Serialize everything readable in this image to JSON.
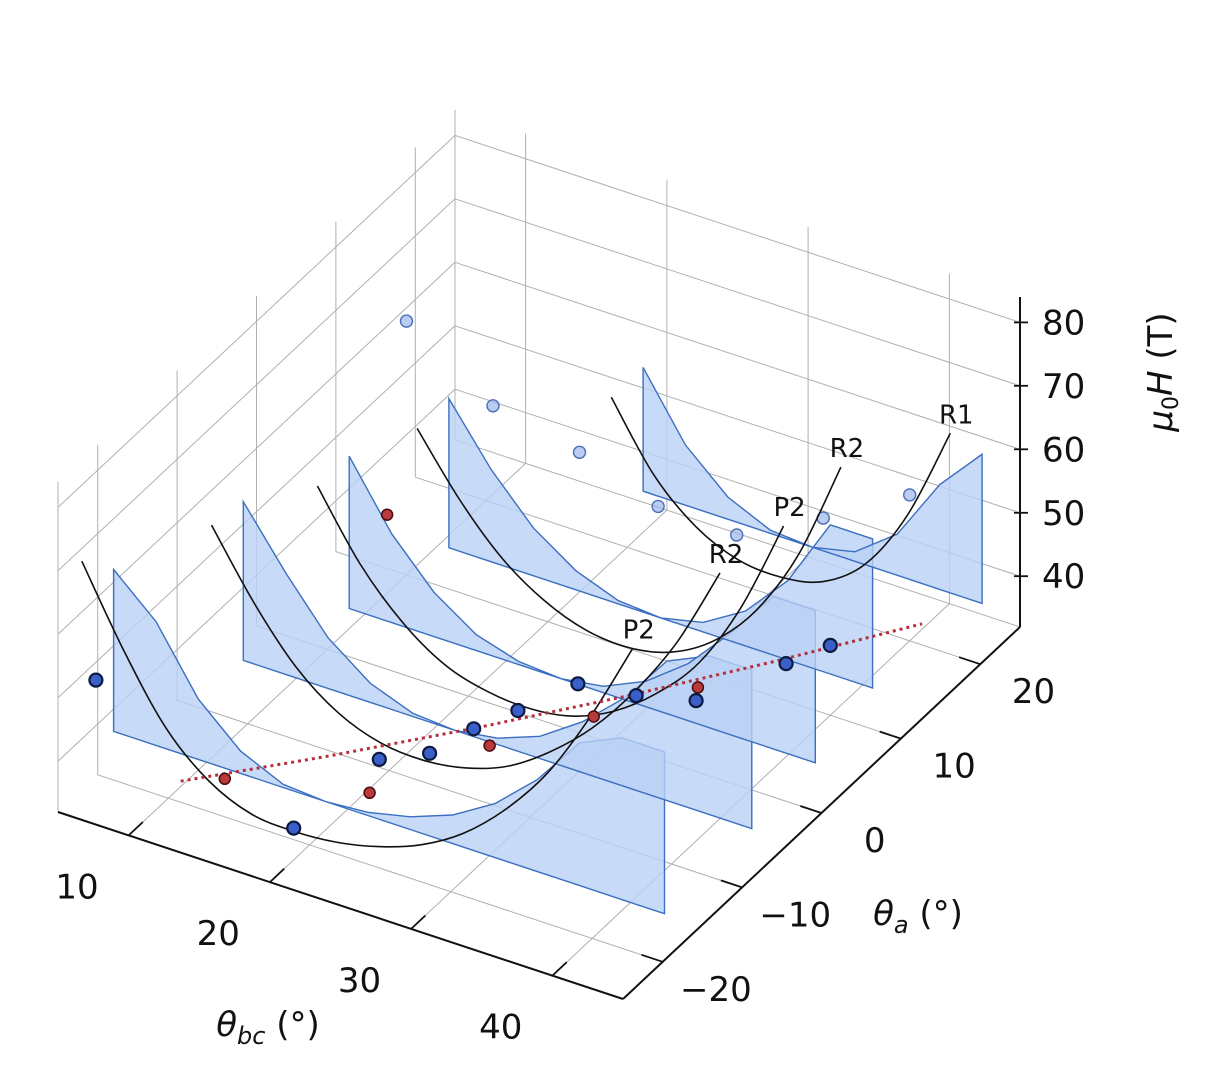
{
  "chart_data": {
    "type": "scatter",
    "projection": "3d",
    "xlabel": "θ_bc (°)",
    "ylabel": "θ_a (°)",
    "zlabel": "μ0H (T)",
    "x_ticks": [
      10,
      20,
      30,
      40
    ],
    "y_ticks": [
      -20,
      -10,
      0,
      10,
      20
    ],
    "z_ticks": [
      40,
      50,
      60,
      70,
      80
    ],
    "xlim": [
      5,
      45
    ],
    "ylim": [
      -25,
      25
    ],
    "zlim": [
      32,
      84
    ],
    "grid": true,
    "curve_labels": [
      "P2",
      "R2",
      "P2",
      "R2",
      "R1"
    ],
    "curves": [
      {
        "name": "P2",
        "theta_a": -22,
        "theta_bc": [
          5,
          8,
          11,
          14,
          17,
          20,
          23,
          26,
          29,
          32,
          35,
          38,
          41,
          44
        ],
        "H": [
          68,
          56,
          46,
          40,
          37,
          36.5,
          37,
          38.5,
          41,
          45,
          51,
          59,
          70,
          83
        ]
      },
      {
        "name": "R2",
        "theta_a": -11,
        "theta_bc": [
          8,
          11,
          14,
          17,
          20,
          23,
          26,
          29,
          32,
          35,
          38,
          41,
          44
        ],
        "H": [
          63,
          53,
          45,
          40,
          37.5,
          37,
          38,
          40.5,
          45,
          51,
          59,
          69,
          82
        ]
      },
      {
        "name": "P2",
        "theta_a": -3,
        "theta_bc": [
          11,
          14,
          17,
          20,
          23,
          26,
          29,
          32,
          35,
          38,
          41,
          44
        ],
        "H": [
          62,
          52,
          45,
          40.5,
          38.5,
          38,
          39,
          42,
          47,
          54,
          65,
          80
        ]
      },
      {
        "name": "R2",
        "theta_a": 6,
        "theta_bc": [
          13,
          16,
          19,
          22,
          25,
          28,
          31,
          34,
          37,
          40,
          43
        ],
        "H": [
          62,
          53,
          46,
          41.5,
          39,
          38.5,
          40,
          44,
          51,
          62,
          78
        ]
      },
      {
        "name": "R1",
        "theta_a": 18,
        "theta_bc": [
          20,
          23,
          26,
          29,
          32,
          35,
          38,
          41,
          44
        ],
        "H": [
          58,
          48,
          42,
          39,
          38.5,
          40,
          45,
          55,
          70
        ]
      }
    ],
    "points_front": [
      {
        "theta_bc": 6,
        "theta_a": -22,
        "H": 50
      },
      {
        "theta_bc": 20,
        "theta_a": -22,
        "H": 37
      },
      {
        "theta_bc": 21,
        "theta_a": -13,
        "H": 38
      },
      {
        "theta_bc": 24,
        "theta_a": -12,
        "H": 40
      },
      {
        "theta_bc": 26,
        "theta_a": -10,
        "H": 43
      },
      {
        "theta_bc": 28,
        "theta_a": -8,
        "H": 45
      },
      {
        "theta_bc": 30,
        "theta_a": -4,
        "H": 46
      },
      {
        "theta_bc": 33,
        "theta_a": -2,
        "H": 44
      },
      {
        "theta_bc": 35,
        "theta_a": 2,
        "H": 40
      },
      {
        "theta_bc": 38,
        "theta_a": 8,
        "H": 41
      },
      {
        "theta_bc": 40,
        "theta_a": 10,
        "H": 43
      }
    ],
    "points_back": [
      {
        "theta_bc": 10,
        "theta_a": 10,
        "H": 72
      },
      {
        "theta_bc": 15,
        "theta_a": 12,
        "H": 60
      },
      {
        "theta_bc": 20,
        "theta_a": 14,
        "H": 54
      },
      {
        "theta_bc": 25,
        "theta_a": 15,
        "H": 48
      },
      {
        "theta_bc": 30,
        "theta_a": 16,
        "H": 46
      },
      {
        "theta_bc": 35,
        "theta_a": 18,
        "H": 50
      },
      {
        "theta_bc": 40,
        "theta_a": 20,
        "H": 55
      }
    ],
    "points_red": [
      {
        "theta_bc": 14,
        "theta_a": -20,
        "H": 38
      },
      {
        "theta_bc": 22,
        "theta_a": -16,
        "H": 37
      },
      {
        "theta_bc": 26,
        "theta_a": -8,
        "H": 38
      },
      {
        "theta_bc": 30,
        "theta_a": -2,
        "H": 38.5
      },
      {
        "theta_bc": 34,
        "theta_a": 4,
        "H": 39
      },
      {
        "theta_bc": 12,
        "theta_a": 4,
        "H": 50
      }
    ],
    "trend_line": {
      "theta_bc": [
        12,
        18,
        24,
        30,
        36,
        42
      ],
      "theta_a": [
        -22,
        -14,
        -6,
        2,
        10,
        18
      ],
      "H": [
        38.5,
        37.5,
        37,
        37,
        37.5,
        38.5
      ]
    }
  }
}
